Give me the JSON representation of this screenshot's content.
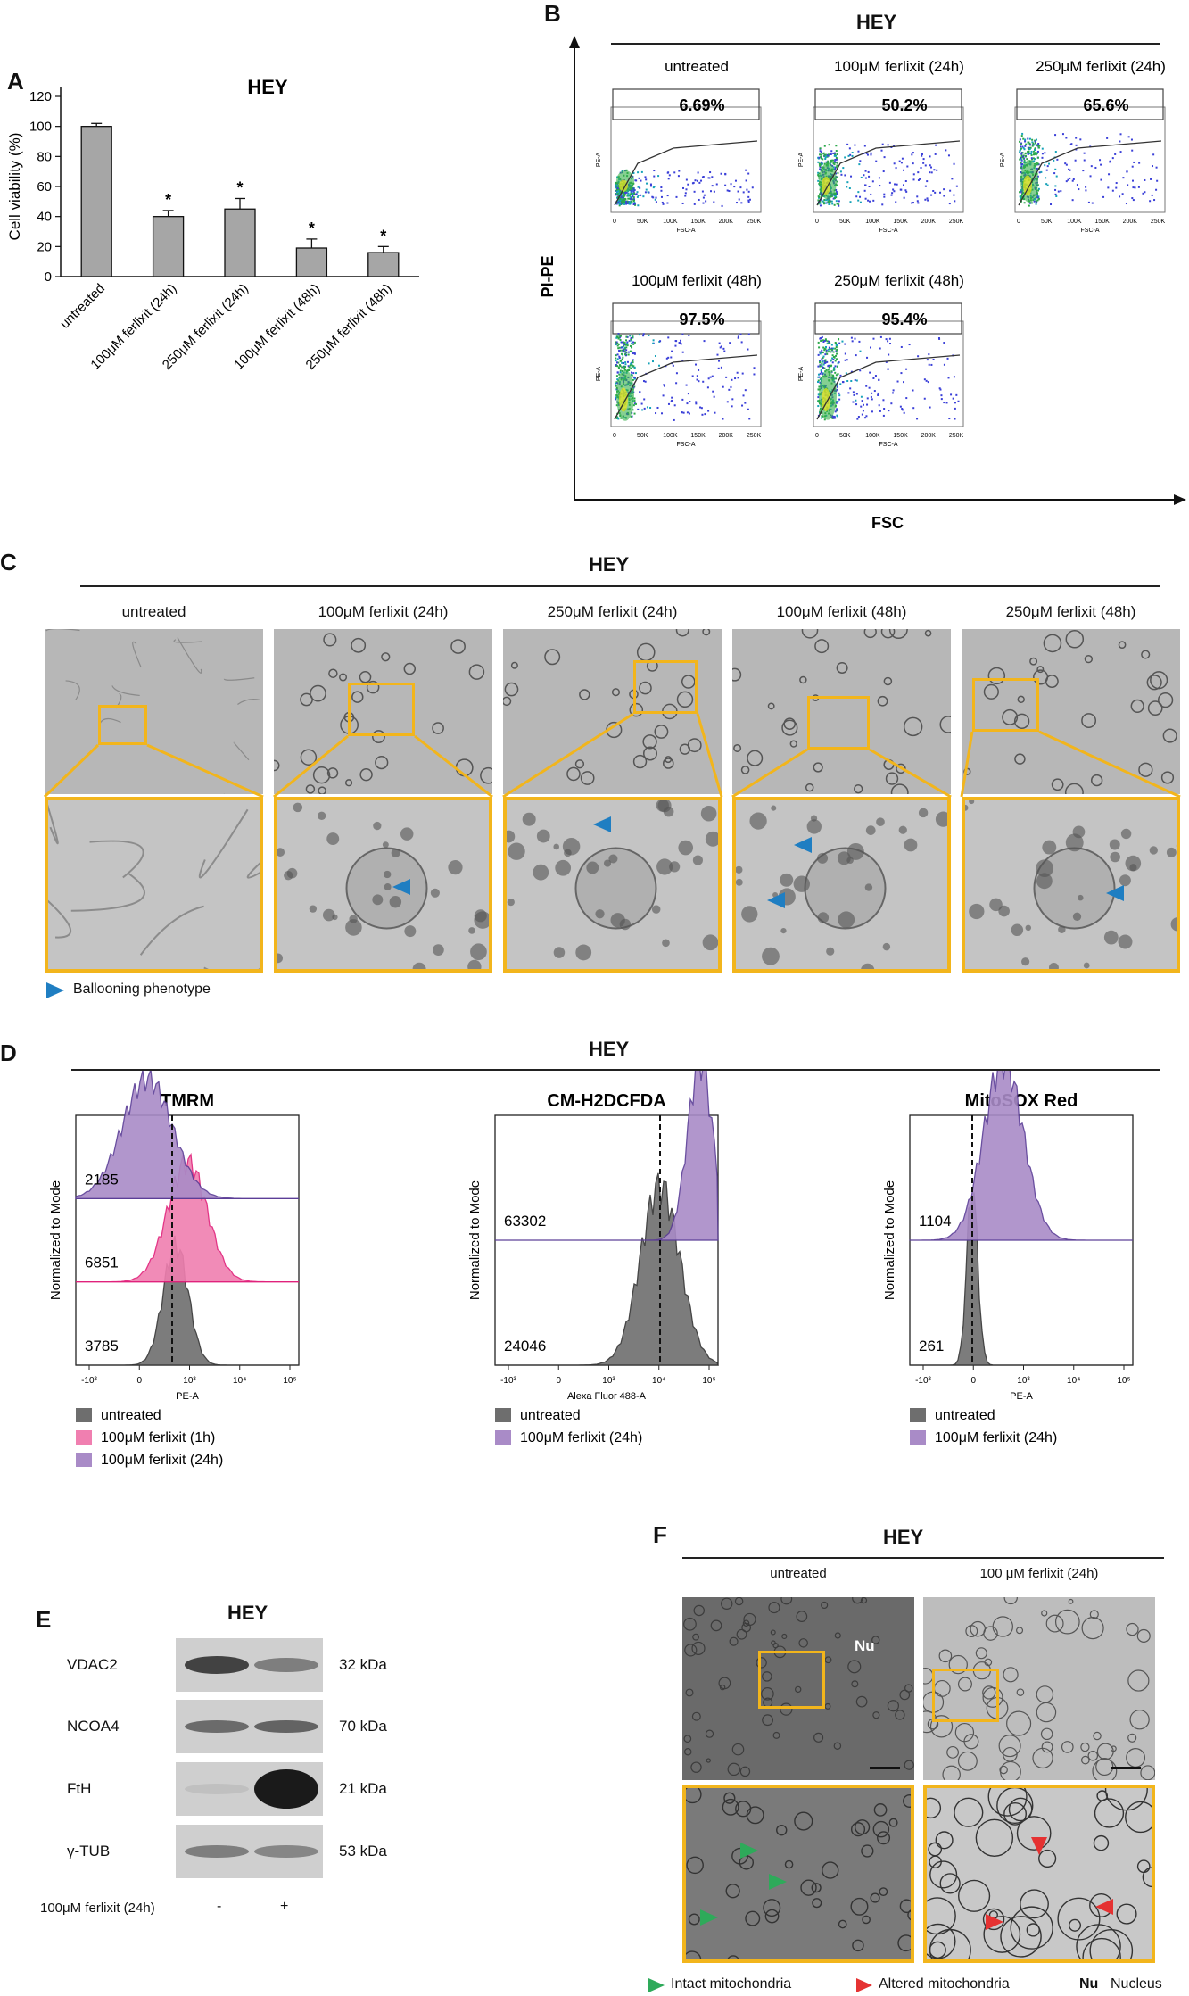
{
  "panelA": {
    "letter": "A",
    "chart_data": {
      "type": "bar",
      "title": "HEY",
      "ylabel": "Cell viability (%)",
      "xlabel": "",
      "ylim": [
        0,
        120
      ],
      "yticks": [
        0,
        20,
        40,
        60,
        80,
        100,
        120
      ],
      "categories": [
        "untreated",
        "100μM ferlixit (24h)",
        "250μM ferlixit (24h)",
        "100μM ferlixit (48h)",
        "250μM ferlixit (48h)"
      ],
      "values": [
        100,
        40,
        45,
        19,
        16
      ],
      "errors": [
        2,
        4,
        7,
        6,
        4
      ],
      "significance": [
        "",
        "*",
        "*",
        "*",
        "*"
      ]
    }
  },
  "panelB": {
    "letter": "B",
    "title": "HEY",
    "ylabel": "PI-PE",
    "xlabel": "FSC",
    "plot_ylabel": "PE-A",
    "plot_xlabel": "FSC-A",
    "x_ticks": [
      "0",
      "50K",
      "100K",
      "150K",
      "200K",
      "250K"
    ],
    "plots": [
      {
        "label": "untreated",
        "percent": "6.69%",
        "density": 0.25
      },
      {
        "label": "100μM ferlixit (24h)",
        "percent": "50.2%",
        "density": 0.6
      },
      {
        "label": "250μM ferlixit (24h)",
        "percent": "65.6%",
        "density": 0.75
      },
      {
        "label": "100μM ferlixit (48h)",
        "percent": "97.5%",
        "density": 0.95
      },
      {
        "label": "250μM ferlixit (48h)",
        "percent": "95.4%",
        "density": 0.9
      }
    ]
  },
  "panelC": {
    "letter": "C",
    "title": "HEY",
    "columns": [
      "untreated",
      "100μM ferlixit (24h)",
      "250μM ferlixit (24h)",
      "100μM ferlixit (48h)",
      "250μM ferlixit (48h)"
    ],
    "legend": "Ballooning phenotype",
    "arrow_color": "#1f7ec2",
    "box_color": "#f2b51c"
  },
  "panelD": {
    "letter": "D",
    "title": "HEY",
    "ylabel": "Normalized to Mode",
    "plots": [
      {
        "title": "TMRM",
        "xlabel": "PE-A",
        "values": [
          "2185",
          "6851",
          "3785"
        ],
        "legend": [
          "untreated",
          "100μM ferlixit (1h)",
          "100μM ferlixit (24h)"
        ]
      },
      {
        "title": "CM-H2DCFDA",
        "xlabel": "Alexa Fluor 488-A",
        "values": [
          "63302",
          "24046"
        ],
        "legend": [
          "untreated",
          "100μM ferlixit (24h)"
        ]
      },
      {
        "title": "MitoSOX Red",
        "xlabel": "PE-A",
        "values": [
          "1104",
          "261"
        ],
        "legend": [
          "untreated",
          "100μM ferlixit (24h)"
        ]
      }
    ],
    "colors": {
      "untreated": "#6e6e6e",
      "ferlixit_1h": "#f07fb0",
      "ferlixit_24h": "#a98bc7"
    }
  },
  "panelE": {
    "letter": "E",
    "title": "HEY",
    "proteins": [
      {
        "name": "VDAC2",
        "kda": "32 kDa"
      },
      {
        "name": "NCOA4",
        "kda": "70 kDa"
      },
      {
        "name": "FtH",
        "kda": "21 kDa"
      },
      {
        "name": "γ-TUB",
        "kda": "53 kDa"
      }
    ],
    "treatment_label": "100μM ferlixit (24h)",
    "lanes": [
      "-",
      "+"
    ]
  },
  "panelF": {
    "letter": "F",
    "title": "HEY",
    "columns": [
      "untreated",
      "100 μM ferlixit (24h)"
    ],
    "nucleus_tag": "Nu",
    "legend": {
      "intact": "Intact mitochondria",
      "altered": "Altered mitochondria",
      "nu_abbrev": "Nu",
      "nu_full": "Nucleus"
    },
    "intact_color": "#2eaa5a",
    "altered_color": "#e53232"
  }
}
